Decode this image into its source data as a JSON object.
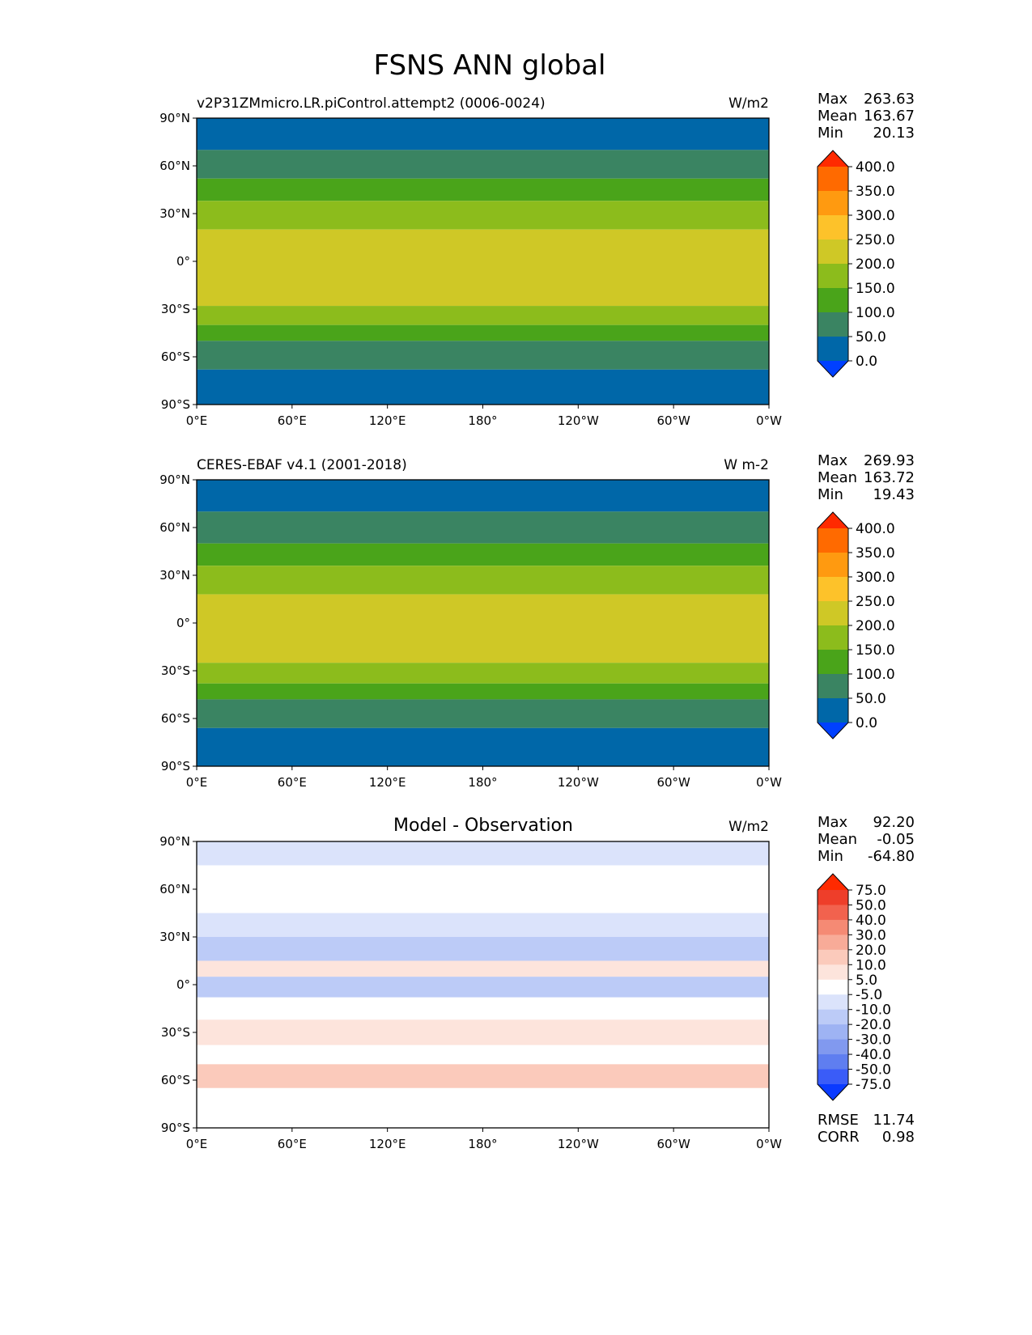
{
  "figure": {
    "title": "FSNS ANN global"
  },
  "chart_data": [
    {
      "type": "heatmap",
      "panel": "model",
      "title": "",
      "left_label": "v2P31ZMmicro.LR.piControl.attempt2 (0006-0024)",
      "units": "W/m2",
      "xlim": [
        0,
        360
      ],
      "ylim": [
        -90,
        90
      ],
      "xticks": [
        "0°E",
        "60°E",
        "120°E",
        "180°",
        "120°W",
        "60°W",
        "0°W"
      ],
      "yticks": [
        "90°N",
        "60°N",
        "30°N",
        "0°",
        "30°S",
        "60°S",
        "90°S"
      ],
      "stats": [
        {
          "label": "Max",
          "value": "263.63"
        },
        {
          "label": "Mean",
          "value": "163.67"
        },
        {
          "label": "Min",
          "value": "20.13"
        }
      ],
      "colorbar": {
        "levels": [
          "400.0",
          "350.0",
          "300.0",
          "250.0",
          "200.0",
          "150.0",
          "100.0",
          "50.0",
          "0.0"
        ],
        "colors": [
          "#ff2a00",
          "#ff6a00",
          "#ff9a10",
          "#fdc22a",
          "#cfc826",
          "#8cbc1c",
          "#4aa41a",
          "#3a8462",
          "#0067a8",
          "#0040ff"
        ]
      },
      "zonal_bands": [
        {
          "lat": [
            70,
            90
          ],
          "value": 30
        },
        {
          "lat": [
            52,
            70
          ],
          "value": 75
        },
        {
          "lat": [
            38,
            52
          ],
          "value": 125
        },
        {
          "lat": [
            20,
            38
          ],
          "value": 175
        },
        {
          "lat": [
            -28,
            20
          ],
          "value": 225
        },
        {
          "lat": [
            -40,
            -28
          ],
          "value": 175
        },
        {
          "lat": [
            -50,
            -40
          ],
          "value": 125
        },
        {
          "lat": [
            -68,
            -50
          ],
          "value": 75
        },
        {
          "lat": [
            -90,
            -68
          ],
          "value": 30
        }
      ]
    },
    {
      "type": "heatmap",
      "panel": "observation",
      "title": "",
      "left_label": "CERES-EBAF v4.1 (2001-2018)",
      "units": "W m-2",
      "xlim": [
        0,
        360
      ],
      "ylim": [
        -90,
        90
      ],
      "xticks": [
        "0°E",
        "60°E",
        "120°E",
        "180°",
        "120°W",
        "60°W",
        "0°W"
      ],
      "yticks": [
        "90°N",
        "60°N",
        "30°N",
        "0°",
        "30°S",
        "60°S",
        "90°S"
      ],
      "stats": [
        {
          "label": "Max",
          "value": "269.93"
        },
        {
          "label": "Mean",
          "value": "163.72"
        },
        {
          "label": "Min",
          "value": "19.43"
        }
      ],
      "colorbar": {
        "levels": [
          "400.0",
          "350.0",
          "300.0",
          "250.0",
          "200.0",
          "150.0",
          "100.0",
          "50.0",
          "0.0"
        ],
        "colors": [
          "#ff2a00",
          "#ff6a00",
          "#ff9a10",
          "#fdc22a",
          "#cfc826",
          "#8cbc1c",
          "#4aa41a",
          "#3a8462",
          "#0067a8",
          "#0040ff"
        ]
      },
      "zonal_bands": [
        {
          "lat": [
            70,
            90
          ],
          "value": 30
        },
        {
          "lat": [
            50,
            70
          ],
          "value": 75
        },
        {
          "lat": [
            36,
            50
          ],
          "value": 125
        },
        {
          "lat": [
            18,
            36
          ],
          "value": 175
        },
        {
          "lat": [
            -25,
            18
          ],
          "value": 225
        },
        {
          "lat": [
            -38,
            -25
          ],
          "value": 175
        },
        {
          "lat": [
            -48,
            -38
          ],
          "value": 125
        },
        {
          "lat": [
            -66,
            -48
          ],
          "value": 75
        },
        {
          "lat": [
            -90,
            -66
          ],
          "value": 30
        }
      ]
    },
    {
      "type": "heatmap",
      "panel": "difference",
      "title": "Model - Observation",
      "left_label": "",
      "units": "W/m2",
      "xlim": [
        0,
        360
      ],
      "ylim": [
        -90,
        90
      ],
      "xticks": [
        "0°E",
        "60°E",
        "120°E",
        "180°",
        "120°W",
        "60°W",
        "0°W"
      ],
      "yticks": [
        "90°N",
        "60°N",
        "30°N",
        "0°",
        "30°S",
        "60°S",
        "90°S"
      ],
      "stats": [
        {
          "label": "Max",
          "value": "92.20"
        },
        {
          "label": "Mean",
          "value": "-0.05"
        },
        {
          "label": "Min",
          "value": "-64.80"
        }
      ],
      "extra_stats": [
        {
          "label": "RMSE",
          "value": "11.74"
        },
        {
          "label": "CORR",
          "value": "0.98"
        }
      ],
      "colorbar": {
        "levels": [
          "75.0",
          "50.0",
          "40.0",
          "30.0",
          "20.0",
          "10.0",
          "5.0",
          "-5.0",
          "-10.0",
          "-20.0",
          "-30.0",
          "-40.0",
          "-50.0",
          "-75.0"
        ],
        "colors": [
          "#ff2a00",
          "#ee3e2a",
          "#f2624e",
          "#f58a74",
          "#f8ab98",
          "#fbcabb",
          "#fde4dc",
          "#ffffff",
          "#dbe3fb",
          "#bccbf7",
          "#9eb3f3",
          "#8199ef",
          "#5f7ef0",
          "#3a5cf8",
          "#0a3aff"
        ]
      },
      "zonal_bands": [
        {
          "lat": [
            75,
            90
          ],
          "value": -7
        },
        {
          "lat": [
            60,
            75
          ],
          "value": -3
        },
        {
          "lat": [
            45,
            60
          ],
          "value": 3
        },
        {
          "lat": [
            30,
            45
          ],
          "value": -7
        },
        {
          "lat": [
            15,
            30
          ],
          "value": -12
        },
        {
          "lat": [
            5,
            15
          ],
          "value": 7
        },
        {
          "lat": [
            -8,
            5
          ],
          "value": -12
        },
        {
          "lat": [
            -22,
            -8
          ],
          "value": 3
        },
        {
          "lat": [
            -38,
            -22
          ],
          "value": 7
        },
        {
          "lat": [
            -50,
            -38
          ],
          "value": -3
        },
        {
          "lat": [
            -65,
            -50
          ],
          "value": 12
        },
        {
          "lat": [
            -90,
            -65
          ],
          "value": 0
        }
      ]
    }
  ]
}
